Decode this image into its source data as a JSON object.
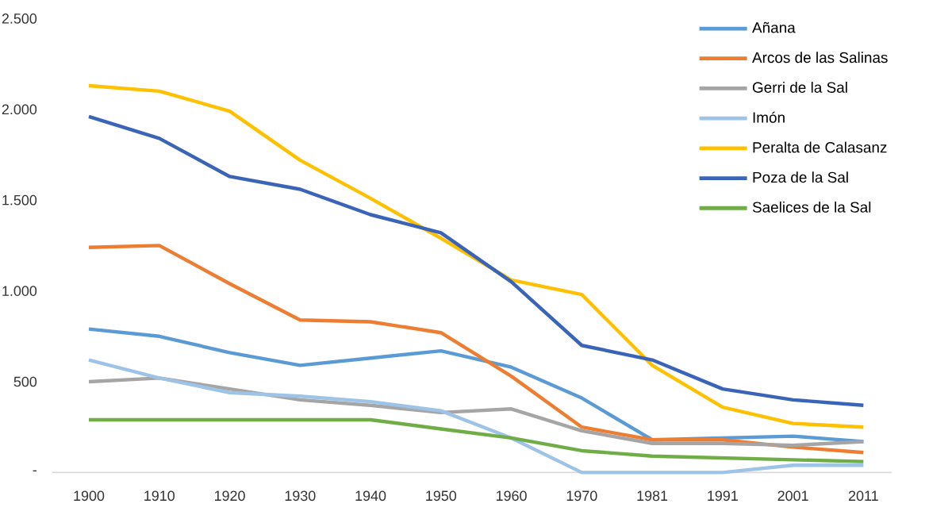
{
  "chart_data": {
    "type": "line",
    "categories": [
      "1900",
      "1910",
      "1920",
      "1930",
      "1940",
      "1950",
      "1960",
      "1970",
      "1981",
      "1991",
      "2001",
      "2011"
    ],
    "ylim": [
      0,
      2500
    ],
    "yticks": [
      {
        "value": 0,
        "label": "-"
      },
      {
        "value": 500,
        "label": "500"
      },
      {
        "value": 1000,
        "label": "1.000"
      },
      {
        "value": 1500,
        "label": "1.500"
      },
      {
        "value": 2000,
        "label": "2.000"
      },
      {
        "value": 2500,
        "label": "2.500"
      }
    ],
    "legend": "top right",
    "series": [
      {
        "name": "Añana",
        "color": "#5b9bd5",
        "values": [
          790,
          750,
          660,
          590,
          630,
          670,
          580,
          410,
          180,
          190,
          200,
          170
        ]
      },
      {
        "name": "Arcos de las Salinas",
        "color": "#ed7d31",
        "values": [
          1240,
          1250,
          1040,
          840,
          830,
          770,
          530,
          250,
          180,
          180,
          140,
          110
        ]
      },
      {
        "name": "Gerri de la Sal",
        "color": "#a5a5a5",
        "values": [
          500,
          520,
          460,
          400,
          370,
          330,
          350,
          230,
          160,
          160,
          150,
          170
        ]
      },
      {
        "name": "Imón",
        "color": "#9dc3e6",
        "values": [
          620,
          520,
          440,
          420,
          390,
          340,
          190,
          0,
          0,
          0,
          40,
          40
        ]
      },
      {
        "name": "Peralta de Calasanz",
        "color": "#ffc000",
        "values": [
          2130,
          2100,
          1990,
          1720,
          1510,
          1290,
          1060,
          980,
          590,
          360,
          270,
          250
        ]
      },
      {
        "name": "Poza de la Sal",
        "color": "#3a64b8",
        "values": [
          1960,
          1840,
          1630,
          1560,
          1420,
          1320,
          1050,
          700,
          620,
          460,
          400,
          370
        ]
      },
      {
        "name": "Saelices de la Sal",
        "color": "#70ad47",
        "values": [
          290,
          290,
          290,
          290,
          290,
          240,
          190,
          120,
          90,
          80,
          70,
          60
        ]
      }
    ]
  }
}
